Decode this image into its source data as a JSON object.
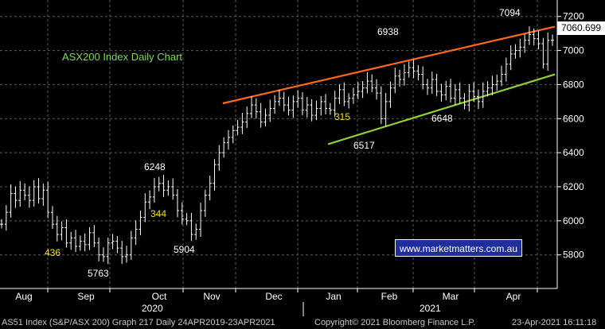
{
  "chart_data": {
    "type": "line",
    "title": "ASX200 Index Daily Chart",
    "ylim": [
      5640,
      7250
    ],
    "y_ticks": [
      5800,
      6000,
      6200,
      6400,
      6600,
      6800,
      7000,
      7200
    ],
    "x_month_labels": [
      "Aug",
      "Sep",
      "Oct",
      "Nov",
      "Dec",
      "Jan",
      "Feb",
      "Mar",
      "Apr"
    ],
    "year_labels": [
      "2020",
      "2021"
    ],
    "last_price": "7060.699",
    "grid": true,
    "series": [
      {
        "values": [
          5980,
          6050,
          6160,
          6120,
          6180,
          6150,
          6120,
          6200,
          6130,
          6180,
          6050,
          5980,
          5920,
          5960,
          5870,
          5900,
          5850,
          5880,
          5860,
          5930,
          5870,
          5800,
          5790,
          5870,
          5880,
          5840,
          5790,
          5800,
          5900,
          5950,
          6020,
          6110,
          6140,
          6200,
          6220,
          6180,
          6200,
          6150,
          6060,
          6010,
          6000,
          5920,
          5950,
          6060,
          6150,
          6220,
          6330,
          6400,
          6460,
          6490,
          6530,
          6550,
          6580,
          6630,
          6680,
          6640,
          6580,
          6620,
          6660,
          6700,
          6720,
          6680,
          6650,
          6700,
          6720,
          6650,
          6680,
          6620,
          6660,
          6700,
          6660,
          6650,
          6720,
          6770,
          6700,
          6720,
          6740,
          6760,
          6780,
          6820,
          6780,
          6750,
          6600,
          6700,
          6780,
          6850,
          6830,
          6870,
          6900,
          6880,
          6860,
          6800,
          6780,
          6830,
          6760,
          6740,
          6790,
          6720,
          6770,
          6720,
          6680,
          6760,
          6730,
          6700,
          6760,
          6780,
          6800,
          6820,
          6860,
          6920,
          6980,
          7000,
          7020,
          7060,
          7094,
          7070,
          7040,
          6920,
          7060,
          7060.699
        ]
      }
    ],
    "annotations": [
      "7094",
      "6938",
      "6248",
      "344",
      "436",
      "5763",
      "5904",
      "315",
      "6517",
      "6648"
    ],
    "channel_lines": [
      "upper-resistance (orange)",
      "lower-support (green)"
    ]
  },
  "footer": {
    "left": "AS51 Index (S&P/ASX 200) Graph 217  Daily 24APR2019-23APR2021",
    "middle": "Copyright© 2021 Bloomberg Finance L.P.",
    "right": "23-Apr-2021 16:11:18"
  },
  "watermark": "www.marketmatters.com.au",
  "colors": {
    "background": "#000000",
    "grid": "#5a5a5a",
    "price": "#ffffff",
    "upper_line": "#ff6a1a",
    "lower_line": "#8fd12f",
    "title": "#7ed957",
    "counts": "#f3e21a",
    "url_box": "#1f2e9c"
  }
}
